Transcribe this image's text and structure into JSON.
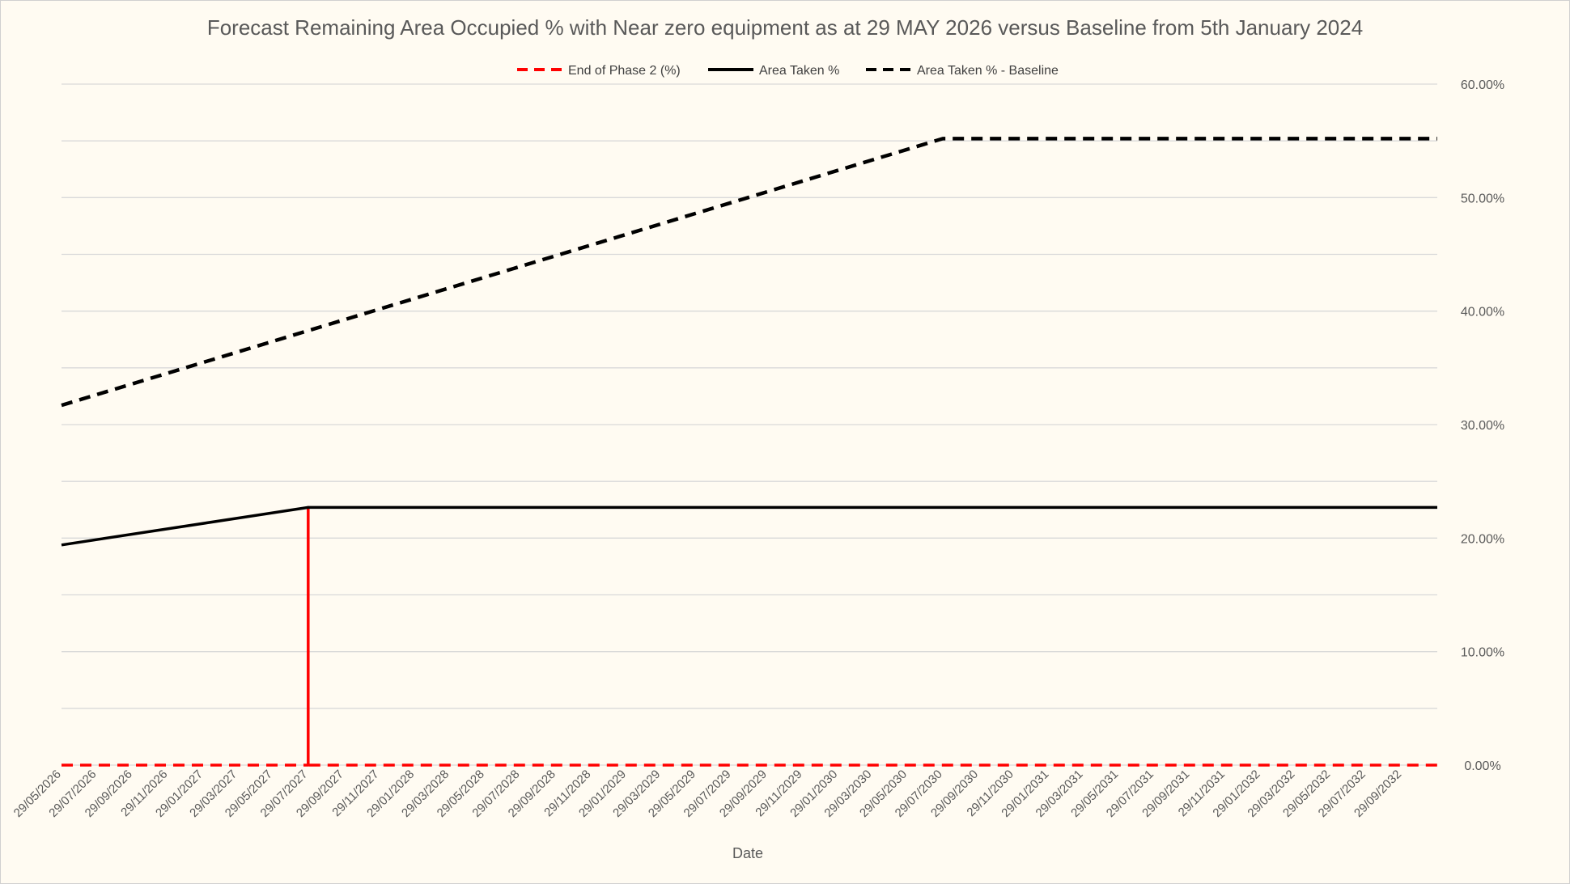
{
  "chart_data": {
    "type": "line",
    "title": "Forecast Remaining Area Occupied % with Near zero equipment as at 29 MAY 2026 versus Baseline from 5th January 2024",
    "xlabel": "Date",
    "ylabel": "",
    "ylim": [
      0,
      0.6
    ],
    "y_axis_side": "right",
    "y_tick_format": "percent_2dp",
    "y_ticks": [
      "0.00%",
      "10.00%",
      "20.00%",
      "30.00%",
      "40.00%",
      "50.00%",
      "60.00%"
    ],
    "gridlines": true,
    "legend_position": "top",
    "x_categories": [
      "29/05/2026",
      "29/07/2026",
      "29/09/2026",
      "29/11/2026",
      "29/01/2027",
      "29/03/2027",
      "29/05/2027",
      "29/07/2027",
      "29/09/2027",
      "29/11/2027",
      "29/01/2028",
      "29/03/2028",
      "29/05/2028",
      "29/07/2028",
      "29/09/2028",
      "29/11/2028",
      "29/01/2029",
      "29/03/2029",
      "29/05/2029",
      "29/07/2029",
      "29/09/2029",
      "29/11/2029",
      "29/01/2030",
      "29/03/2030",
      "29/05/2030",
      "29/07/2030",
      "29/09/2030",
      "29/11/2030",
      "29/01/2031",
      "29/03/2031",
      "29/05/2031",
      "29/07/2031",
      "29/09/2031",
      "29/11/2031",
      "29/01/2032",
      "29/03/2032",
      "29/05/2032",
      "29/07/2032",
      "29/09/2032"
    ],
    "x_end": "29/11/2032",
    "series": [
      {
        "name": "End of Phase 2 (%)",
        "color": "#ff0000",
        "dash": "dashed",
        "points": [
          {
            "x": "29/05/2026",
            "y": 0
          },
          {
            "x": "29/07/2027",
            "y": 0
          },
          {
            "x": "29/07/2027",
            "y": 0.227
          },
          {
            "x": "29/07/2027",
            "y": 0
          },
          {
            "x": "29/11/2032",
            "y": 0
          }
        ]
      },
      {
        "name": "Area Taken %",
        "color": "#000000",
        "dash": "solid",
        "points": [
          {
            "x": "29/05/2026",
            "y": 0.194
          },
          {
            "x": "29/07/2027",
            "y": 0.227
          },
          {
            "x": "29/11/2032",
            "y": 0.227
          }
        ]
      },
      {
        "name": "Area Taken % - Baseline",
        "color": "#000000",
        "dash": "dashed",
        "points": [
          {
            "x": "29/05/2026",
            "y": 0.317
          },
          {
            "x": "29/07/2030",
            "y": 0.552
          },
          {
            "x": "29/11/2032",
            "y": 0.552
          }
        ]
      }
    ]
  }
}
